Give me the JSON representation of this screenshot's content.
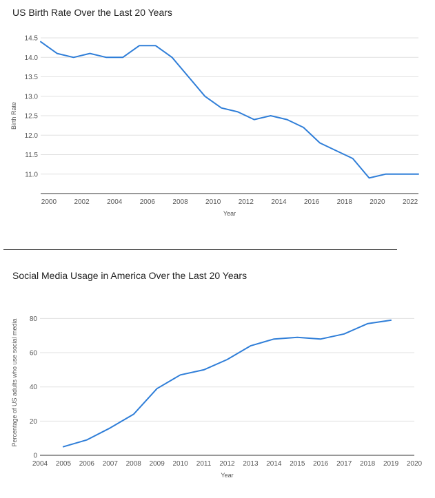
{
  "chart_data": [
    {
      "type": "line",
      "title": "US Birth Rate Over the Last 20 Years",
      "xlabel": "Year",
      "ylabel": "Birth Rate",
      "xlim": [
        1999.5,
        2022.5
      ],
      "ylim": [
        10.5,
        14.5
      ],
      "x_ticks": [
        2000,
        2002,
        2004,
        2006,
        2008,
        2010,
        2012,
        2014,
        2016,
        2018,
        2020,
        2022
      ],
      "y_ticks": [
        11.0,
        11.5,
        12.0,
        12.5,
        13.0,
        13.5,
        14.0,
        14.5
      ],
      "y_tick_decimals": 1,
      "grid": true,
      "legend": "none",
      "series": [
        {
          "color": "#2f7ed8",
          "x": [
            1999.5,
            2000.5,
            2001.5,
            2002.5,
            2003.5,
            2004.5,
            2005.5,
            2006.5,
            2007.5,
            2008.5,
            2009.5,
            2010.5,
            2011.5,
            2012.5,
            2013.5,
            2014.5,
            2015.5,
            2016.5,
            2017.5,
            2018.5,
            2019.5,
            2020.5,
            2021.5,
            2022.5
          ],
          "y": [
            14.4,
            14.1,
            14.0,
            14.1,
            14.0,
            14.0,
            14.3,
            14.3,
            14.0,
            13.5,
            13.0,
            12.7,
            12.6,
            12.4,
            12.5,
            12.4,
            12.2,
            11.8,
            11.6,
            11.4,
            10.9,
            11.0,
            11.0,
            11.0
          ]
        }
      ]
    },
    {
      "type": "line",
      "title": "Social Media Usage in America Over the Last 20 Years",
      "xlabel": "Year",
      "ylabel": "Percentage of US adults who use social media",
      "xlim": [
        2004,
        2020
      ],
      "ylim": [
        0,
        85
      ],
      "x_ticks": [
        2004,
        2005,
        2006,
        2007,
        2008,
        2009,
        2010,
        2011,
        2012,
        2013,
        2014,
        2015,
        2016,
        2017,
        2018,
        2019,
        2020
      ],
      "y_ticks": [
        0,
        20,
        40,
        60,
        80
      ],
      "y_tick_decimals": 0,
      "grid": true,
      "legend": "none",
      "series": [
        {
          "color": "#2f7ed8",
          "x": [
            2005,
            2006,
            2007,
            2008,
            2009,
            2010,
            2011,
            2012,
            2013,
            2014,
            2015,
            2016,
            2017,
            2018,
            2019
          ],
          "y": [
            5,
            9,
            16,
            24,
            39,
            47,
            50,
            56,
            64,
            68,
            69,
            68,
            71,
            77,
            79
          ]
        }
      ]
    }
  ]
}
